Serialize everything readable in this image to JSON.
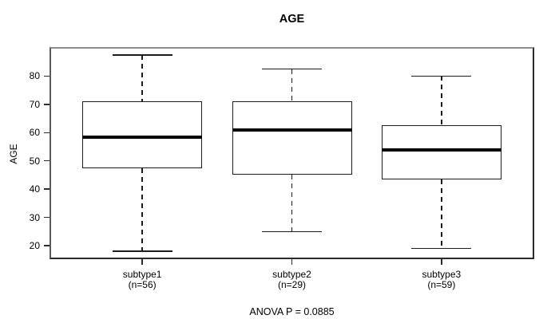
{
  "chart_data": {
    "type": "box",
    "title": "AGE",
    "xlabel": "",
    "ylabel": "AGE",
    "footer_annotation": "ANOVA P = 0.0885",
    "categories": [
      "subtype1",
      "subtype2",
      "subtype3"
    ],
    "n_labels": [
      "(n=56)",
      "(n=29)",
      "(n=59)"
    ],
    "series": [
      {
        "name": "subtype1",
        "n": 56,
        "whisker_low": 18,
        "q1": 47.5,
        "median": 58.3,
        "q3": 71,
        "whisker_high": 87.5
      },
      {
        "name": "subtype2",
        "n": 29,
        "whisker_low": 25,
        "q1": 45,
        "median": 61,
        "q3": 71,
        "whisker_high": 82.5
      },
      {
        "name": "subtype3",
        "n": 59,
        "whisker_low": 19,
        "q1": 43.5,
        "median": 54,
        "q3": 62.5,
        "whisker_high": 80
      }
    ],
    "yticks": [
      20,
      30,
      40,
      50,
      60,
      70,
      80
    ],
    "ylim": [
      15.2,
      90.3
    ],
    "grid": false,
    "legend_position": "none",
    "line_color": "#1c1c1c",
    "median_color": "#000000",
    "box_fill": "#ffffff",
    "background": "#ffffff"
  }
}
